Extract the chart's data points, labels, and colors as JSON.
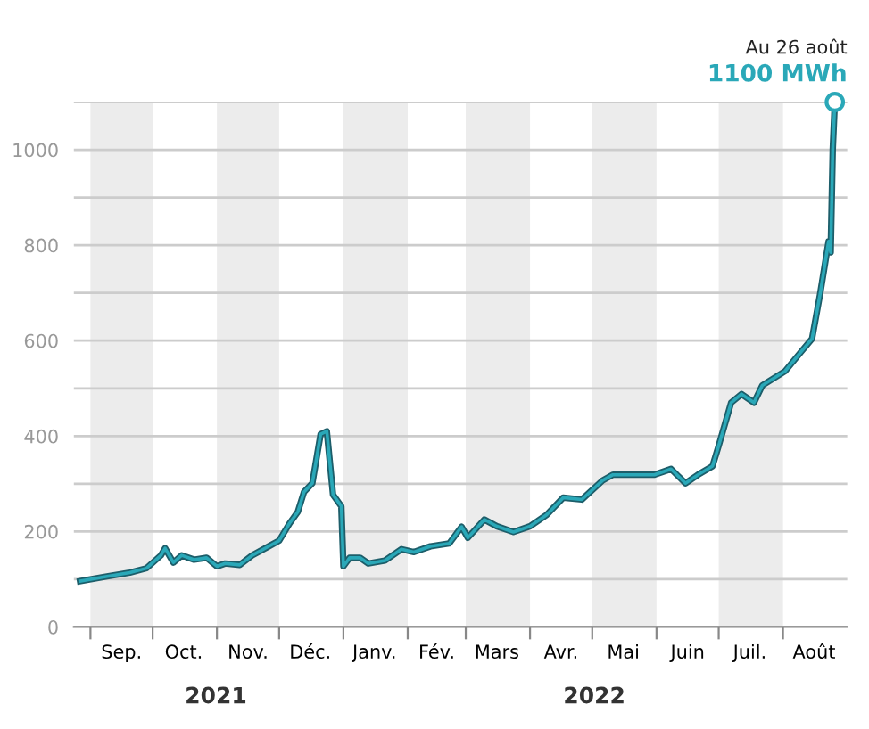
{
  "chart_data": {
    "type": "line",
    "x": [
      "2021-08-27",
      "2021-09-09",
      "2021-09-20",
      "2021-09-28",
      "2021-10-05",
      "2021-10-07",
      "2021-10-11",
      "2021-10-15",
      "2021-10-21",
      "2021-10-27",
      "2021-11-01",
      "2021-11-05",
      "2021-11-12",
      "2021-11-18",
      "2021-11-26",
      "2021-12-01",
      "2021-12-06",
      "2021-12-10",
      "2021-12-13",
      "2021-12-17",
      "2021-12-21",
      "2021-12-24",
      "2021-12-27",
      "2021-12-31",
      "2022-01-01",
      "2022-01-04",
      "2022-01-09",
      "2022-01-13",
      "2022-01-21",
      "2022-01-29",
      "2022-02-04",
      "2022-02-12",
      "2022-02-21",
      "2022-02-27",
      "2022-03-02",
      "2022-03-10",
      "2022-03-16",
      "2022-03-24",
      "2022-04-01",
      "2022-04-09",
      "2022-04-17",
      "2022-04-26",
      "2022-05-06",
      "2022-05-11",
      "2022-05-22",
      "2022-05-31",
      "2022-06-08",
      "2022-06-15",
      "2022-06-21",
      "2022-06-28",
      "2022-07-01",
      "2022-07-07",
      "2022-07-12",
      "2022-07-18",
      "2022-07-22",
      "2022-08-02",
      "2022-08-10",
      "2022-08-15",
      "2022-08-19",
      "2022-08-23",
      "2022-08-24",
      "2022-08-25",
      "2022-08-26"
    ],
    "series": [
      {
        "color": "#2aa8b8",
        "marker": "none",
        "values": [
          96,
          106,
          114,
          123,
          150,
          165,
          135,
          150,
          141,
          145,
          127,
          133,
          130,
          150,
          169,
          181,
          217,
          241,
          283,
          301,
          404,
          410,
          277,
          253,
          127,
          145,
          145,
          133,
          139,
          163,
          157,
          169,
          175,
          210,
          187,
          225,
          211,
          199,
          211,
          235,
          271,
          267,
          307,
          319,
          319,
          319,
          331,
          301,
          319,
          337,
          380,
          470,
          488,
          470,
          506,
          536,
          578,
          604,
          700,
          808,
          785,
          1001,
          1100
        ]
      },
      {
        "type": "scatter",
        "color": "#2aa8b8",
        "marker": "circle",
        "x": [
          "2022-08-26"
        ],
        "values": [
          1100
        ]
      }
    ],
    "xlim": [
      "2021-08-24",
      "2022-09-01"
    ],
    "xticks": [
      {
        "value": "2021-09-01",
        "label": null
      },
      {
        "value": "2021-09-16",
        "label": "Sep."
      },
      {
        "value": "2021-10-01",
        "label": null
      },
      {
        "value": "2021-10-16",
        "label": "Oct."
      },
      {
        "value": "2021-11-01",
        "label": null
      },
      {
        "value": "2021-11-16",
        "label": "Nov."
      },
      {
        "value": "2021-12-01",
        "label": null
      },
      {
        "value": "2021-12-16",
        "label": "Déc."
      },
      {
        "value": "2022-01-01",
        "label": null
      },
      {
        "value": "2022-01-16",
        "label": "Janv."
      },
      {
        "value": "2022-02-01",
        "label": null
      },
      {
        "value": "2022-02-15",
        "label": "Fév."
      },
      {
        "value": "2022-03-01",
        "label": null
      },
      {
        "value": "2022-03-16",
        "label": "Mars"
      },
      {
        "value": "2022-04-01",
        "label": null
      },
      {
        "value": "2022-04-16",
        "label": "Avr."
      },
      {
        "value": "2022-05-01",
        "label": null
      },
      {
        "value": "2022-05-16",
        "label": "Mai"
      },
      {
        "value": "2022-06-01",
        "label": null
      },
      {
        "value": "2022-06-16",
        "label": "Juin"
      },
      {
        "value": "2022-07-01",
        "label": null
      },
      {
        "value": "2022-07-16",
        "label": "Juil."
      },
      {
        "value": "2022-08-01",
        "label": null
      },
      {
        "value": "2022-08-16",
        "label": "Août"
      }
    ],
    "ylim": [
      0,
      1100
    ],
    "yticks": [
      0,
      {
        "value": 100,
        "label": null
      },
      200,
      {
        "value": 300,
        "label": null
      },
      400,
      {
        "value": 500,
        "label": null
      },
      600,
      {
        "value": 700,
        "label": null
      },
      800,
      {
        "value": 900,
        "label": null
      },
      1000,
      {
        "value": 1100,
        "label": null
      }
    ],
    "grid": "y",
    "legend": false,
    "bands": [
      {
        "axis": "x",
        "from": "2021-09-01",
        "to": "2021-10-01",
        "color": "#ececec"
      },
      {
        "axis": "x",
        "from": "2021-11-01",
        "to": "2021-12-01",
        "color": "#ececec"
      },
      {
        "axis": "x",
        "from": "2022-01-01",
        "to": "2022-02-01",
        "color": "#ececec"
      },
      {
        "axis": "x",
        "from": "2022-03-01",
        "to": "2022-04-01",
        "color": "#ececec"
      },
      {
        "axis": "x",
        "from": "2022-05-01",
        "to": "2022-06-01",
        "color": "#ececec"
      },
      {
        "axis": "x",
        "from": "2022-07-01",
        "to": "2022-08-01",
        "color": "#ececec"
      }
    ],
    "annotations": [
      "2021",
      "2022",
      "Au 26 août",
      "1100 MWh"
    ]
  }
}
